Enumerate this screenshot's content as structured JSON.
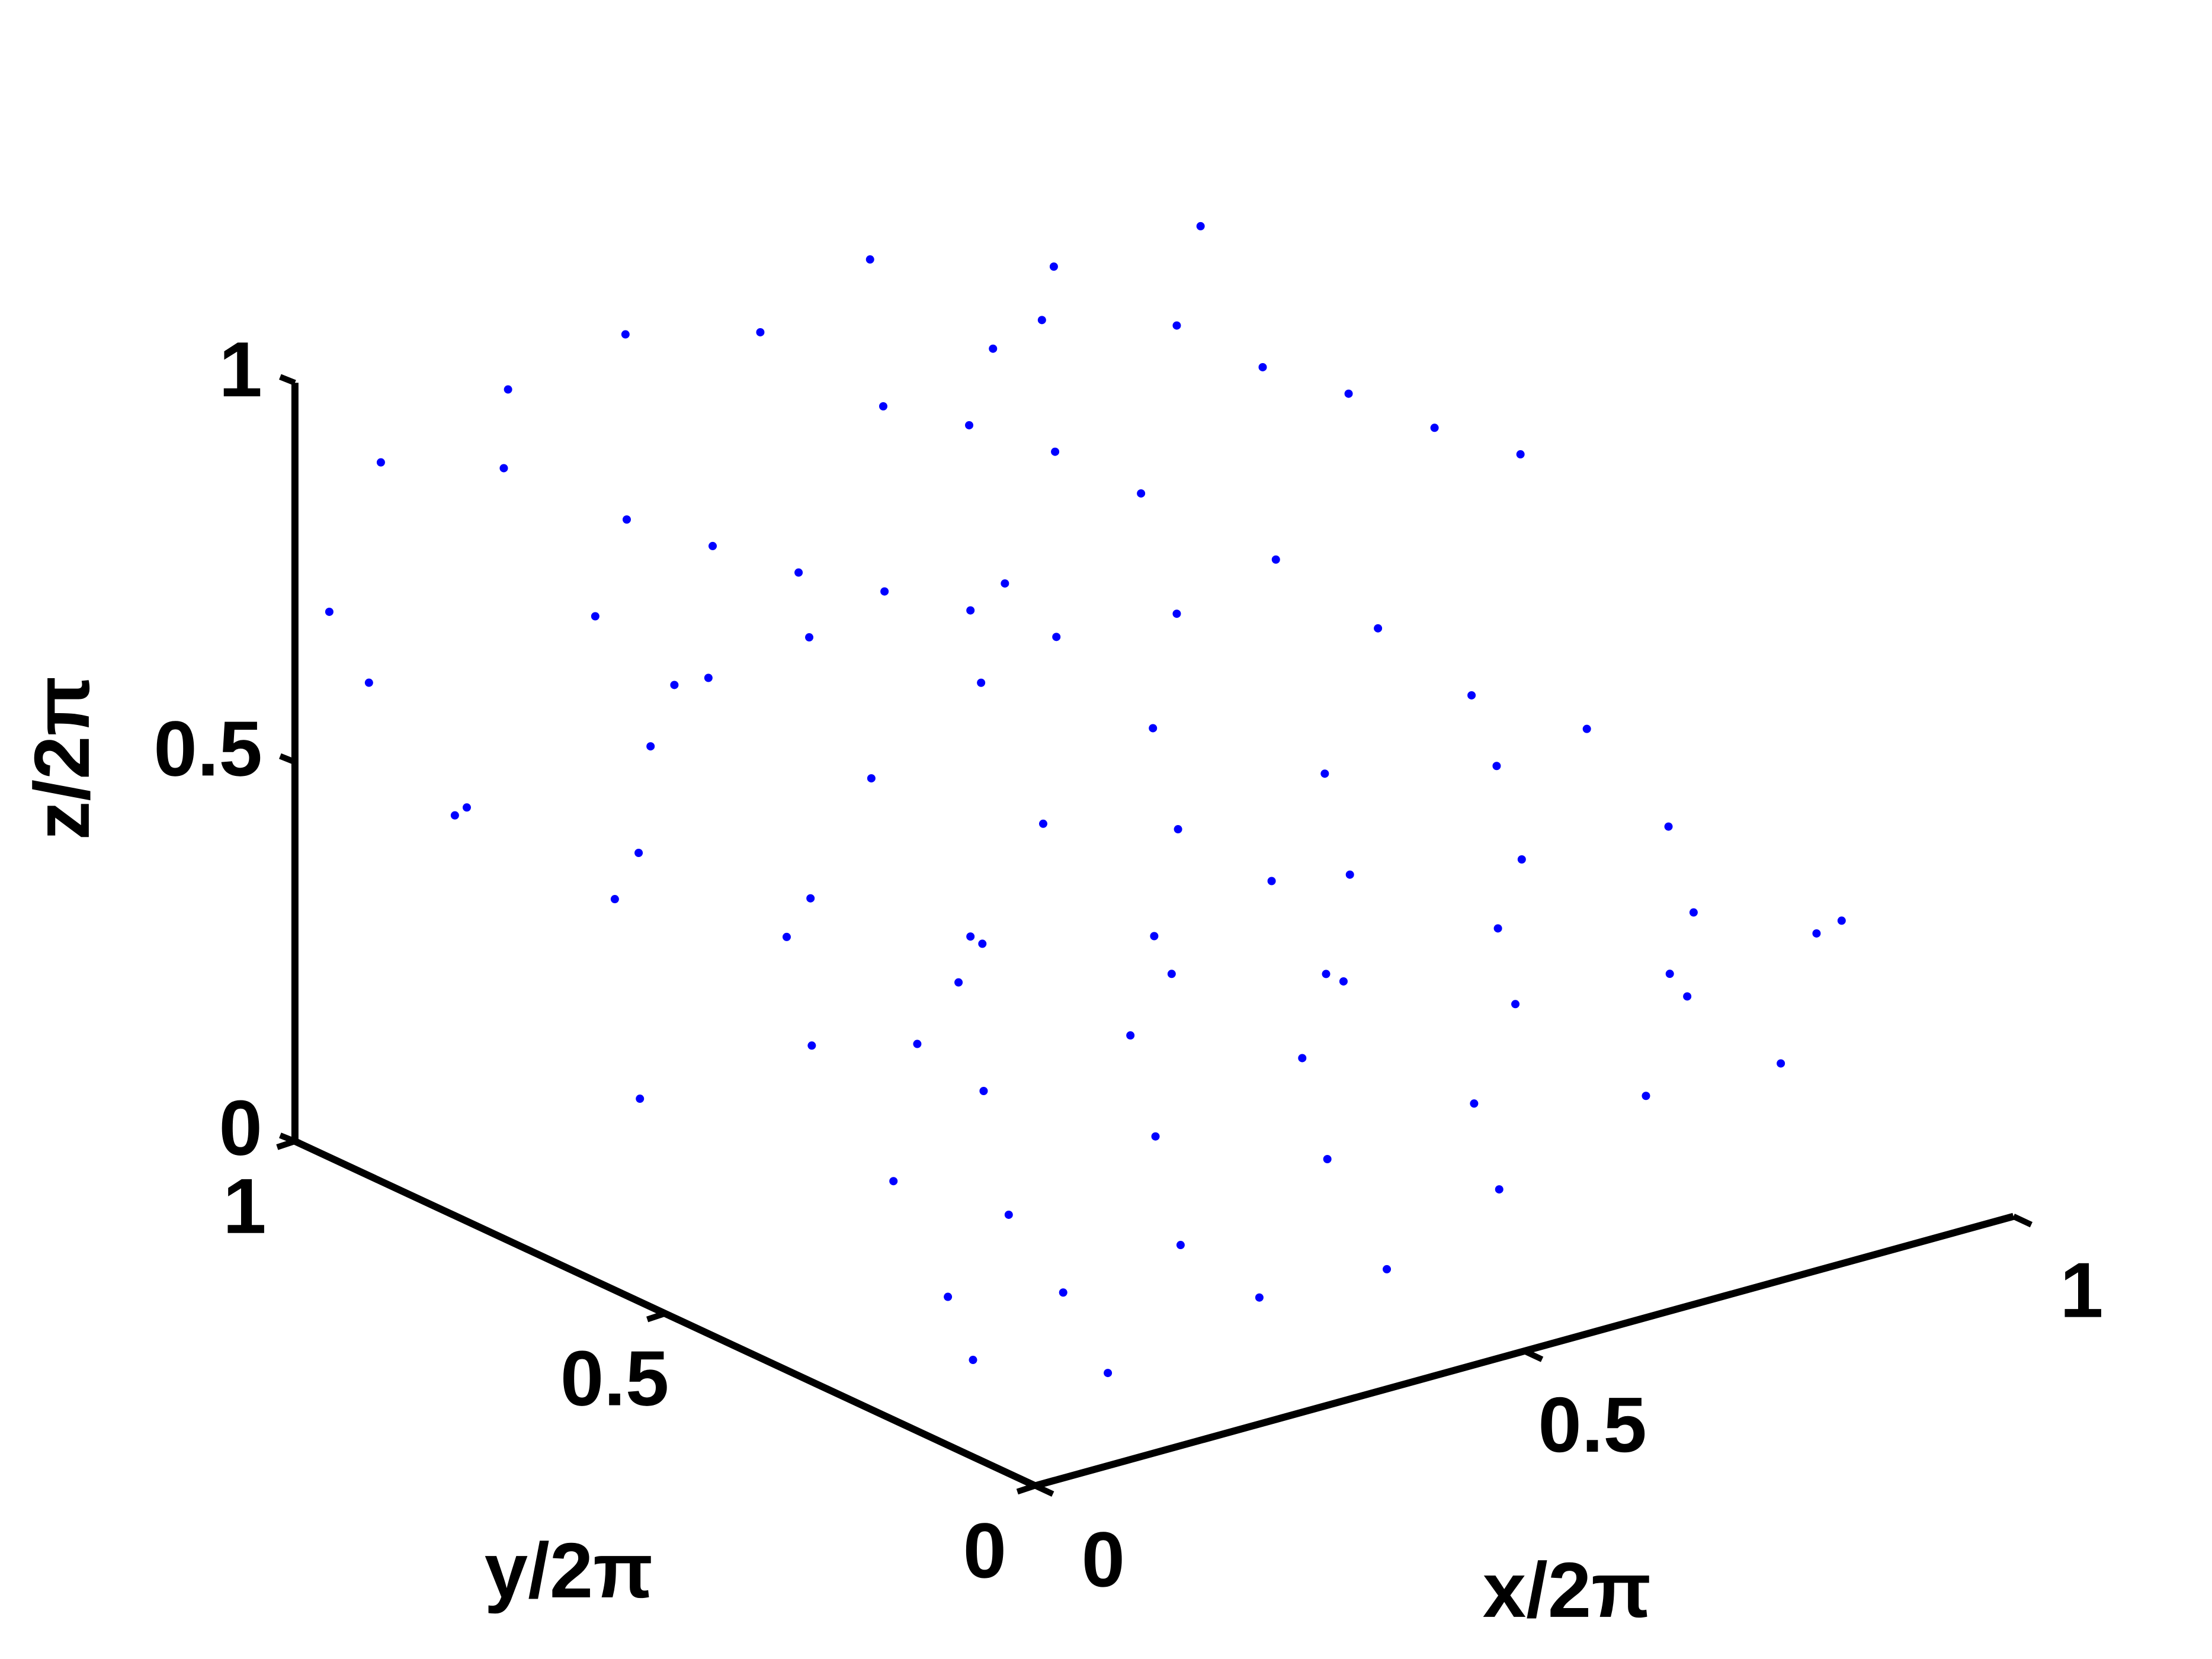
{
  "chart_data": {
    "type": "scatter3d",
    "color": "#0000ff",
    "xlabel": "x/2π",
    "ylabel": "y/2π",
    "zlabel": "z/2π",
    "xlim": [
      0,
      1
    ],
    "ylim": [
      0,
      1
    ],
    "zlim": [
      0,
      1
    ],
    "xticks": [
      0,
      0.5,
      1
    ],
    "yticks": [
      0,
      0.5,
      1
    ],
    "zticks": [
      0,
      0.5,
      1
    ],
    "x": [
      0.1,
      0.2,
      0.3,
      0.4,
      0.5,
      0.6,
      0.7,
      0.8,
      0.9,
      0.15,
      0.25,
      0.35,
      0.45,
      0.55,
      0.05,
      0.65,
      0.75,
      0.85,
      0.95,
      0.55,
      0.45,
      0.35,
      0.2,
      0.3,
      0.1,
      0.05,
      0.15,
      0.6,
      0.7,
      0.8,
      0.9,
      0.5,
      0.4,
      0.3,
      0.2,
      0.1,
      0.05,
      0.25,
      0.4,
      0.6,
      0.7,
      0.8,
      0.95,
      0.9,
      0.75,
      0.65,
      0.5,
      0.35,
      0.22,
      0.12,
      0.48,
      0.58,
      0.68,
      0.78,
      0.88,
      0.98,
      0.42,
      0.32,
      0.18,
      0.62,
      0.05,
      0.1,
      0.15,
      0.2,
      0.25,
      0.3,
      0.35,
      0.4,
      0.08,
      0.12,
      0.45,
      0.5,
      0.55,
      0.6,
      0.65,
      0.7,
      0.75,
      0.8,
      0.85,
      0.9,
      0.95,
      0.3,
      0.4,
      0.55,
      0.6,
      0.02,
      0.0,
      0.18,
      0.7,
      0.85
    ],
    "y": [
      0.9,
      0.8,
      0.7,
      0.6,
      0.5,
      0.4,
      0.3,
      0.2,
      0.1,
      0.5,
      0.4,
      0.3,
      0.2,
      0.1,
      0.6,
      0.7,
      0.6,
      0.5,
      0.4,
      0.8,
      0.9,
      0.95,
      0.3,
      0.2,
      0.25,
      0.15,
      0.1,
      0.6,
      0.5,
      0.4,
      0.3,
      0.3,
      0.4,
      0.5,
      0.6,
      0.7,
      0.85,
      0.85,
      0.75,
      0.2,
      0.1,
      0.05,
      0.2,
      0.6,
      0.8,
      0.9,
      0.65,
      0.55,
      0.45,
      0.35,
      0.45,
      0.35,
      0.25,
      0.15,
      0.7,
      0.55,
      0.08,
      0.12,
      0.2,
      0.5,
      0.95,
      0.85,
      0.75,
      0.7,
      0.65,
      0.6,
      0.55,
      0.5,
      0.7,
      0.6,
      0.8,
      0.75,
      0.7,
      0.65,
      0.85,
      0.9,
      0.8,
      0.75,
      0.7,
      0.65,
      0.6,
      0.95,
      0.9,
      0.95,
      0.85,
      0.98,
      0.9,
      0.95,
      0.6,
      0.9
    ],
    "z": [
      0.45,
      0.4,
      0.35,
      0.3,
      0.32,
      0.28,
      0.35,
      0.3,
      0.38,
      0.3,
      0.25,
      0.2,
      0.18,
      0.15,
      0.22,
      0.45,
      0.4,
      0.42,
      0.35,
      0.5,
      0.55,
      0.5,
      0.15,
      0.12,
      0.1,
      0.08,
      0.05,
      0.38,
      0.33,
      0.36,
      0.3,
      0.25,
      0.27,
      0.33,
      0.38,
      0.42,
      0.48,
      0.5,
      0.45,
      0.2,
      0.22,
      0.25,
      0.3,
      0.45,
      0.52,
      0.55,
      0.4,
      0.35,
      0.3,
      0.2,
      0.3,
      0.3,
      0.28,
      0.3,
      0.5,
      0.4,
      0.1,
      0.08,
      0.1,
      0.35,
      0.9,
      0.92,
      0.88,
      0.85,
      0.82,
      0.8,
      0.78,
      0.75,
      0.8,
      0.75,
      0.9,
      0.88,
      0.85,
      0.8,
      0.92,
      0.95,
      0.9,
      0.85,
      0.82,
      0.78,
      0.75,
      0.98,
      0.97,
      0.99,
      0.9,
      0.7,
      0.65,
      0.95,
      0.7,
      0.95
    ]
  }
}
